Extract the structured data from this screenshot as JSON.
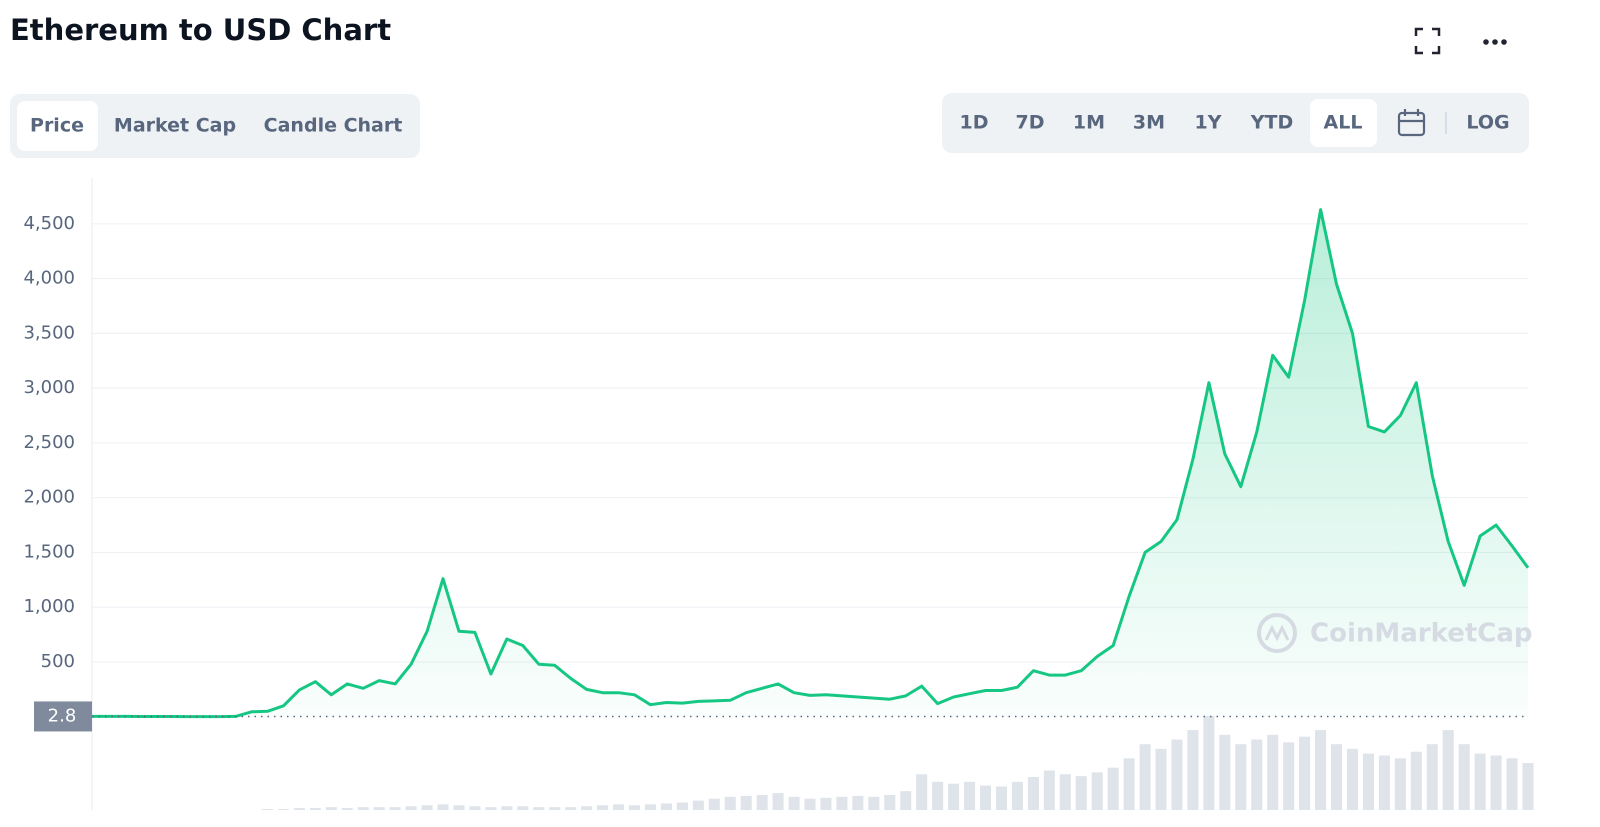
{
  "header": {
    "title": "Ethereum to USD Chart"
  },
  "tabs": [
    "Price",
    "Market Cap",
    "Candle Chart"
  ],
  "ranges": [
    "1D",
    "7D",
    "1M",
    "3M",
    "1Y",
    "YTD",
    "ALL"
  ],
  "log_button": "LOG",
  "chart_data": {
    "type": "area",
    "color": "#16c784",
    "ylim": [
      0,
      4900
    ],
    "yticks": [
      {
        "value": 500,
        "label": "500"
      },
      {
        "value": 1000,
        "label": "1,000"
      },
      {
        "value": 1500,
        "label": "1,500"
      },
      {
        "value": 2000,
        "label": "2,000"
      },
      {
        "value": 2500,
        "label": "2,500"
      },
      {
        "value": 3000,
        "label": "3,000"
      },
      {
        "value": 3500,
        "label": "3,500"
      },
      {
        "value": 4000,
        "label": "4,000"
      },
      {
        "value": 4500,
        "label": "4,500"
      }
    ],
    "grid": true,
    "marker": 2.8,
    "watermark": "CoinMarketCap",
    "values": [
      3,
      3,
      3,
      2,
      2,
      2,
      1,
      1,
      1,
      3,
      45,
      50,
      100,
      245,
      320,
      200,
      300,
      260,
      330,
      300,
      480,
      780,
      1260,
      780,
      770,
      390,
      710,
      650,
      480,
      470,
      350,
      250,
      220,
      220,
      200,
      110,
      130,
      125,
      140,
      145,
      150,
      220,
      260,
      300,
      220,
      195,
      200,
      190,
      180,
      170,
      160,
      190,
      280,
      120,
      180,
      210,
      240,
      240,
      270,
      420,
      380,
      380,
      420,
      550,
      650,
      1100,
      1500,
      1600,
      1800,
      2350,
      3050,
      2400,
      2100,
      2600,
      3300,
      3100,
      3800,
      4630,
      3950,
      3500,
      2650,
      2600,
      2750,
      3050,
      2200,
      1600,
      1200,
      1650,
      1750,
      1560,
      1360
    ],
    "volume": [
      0,
      0,
      0,
      0,
      0,
      0,
      0,
      0,
      0,
      0,
      0,
      1,
      1,
      2,
      2,
      3,
      2,
      3,
      3,
      3,
      4,
      5,
      6,
      5,
      4,
      3,
      4,
      4,
      3,
      3,
      3,
      4,
      5,
      6,
      5,
      6,
      7,
      8,
      10,
      12,
      14,
      15,
      16,
      18,
      14,
      12,
      13,
      14,
      15,
      14,
      16,
      20,
      38,
      30,
      28,
      30,
      26,
      25,
      30,
      35,
      42,
      38,
      36,
      40,
      45,
      55,
      70,
      65,
      75,
      85,
      100,
      80,
      70,
      75,
      80,
      72,
      78,
      85,
      70,
      65,
      60,
      58,
      55,
      62,
      70,
      85,
      70,
      60,
      58,
      55,
      50
    ]
  }
}
